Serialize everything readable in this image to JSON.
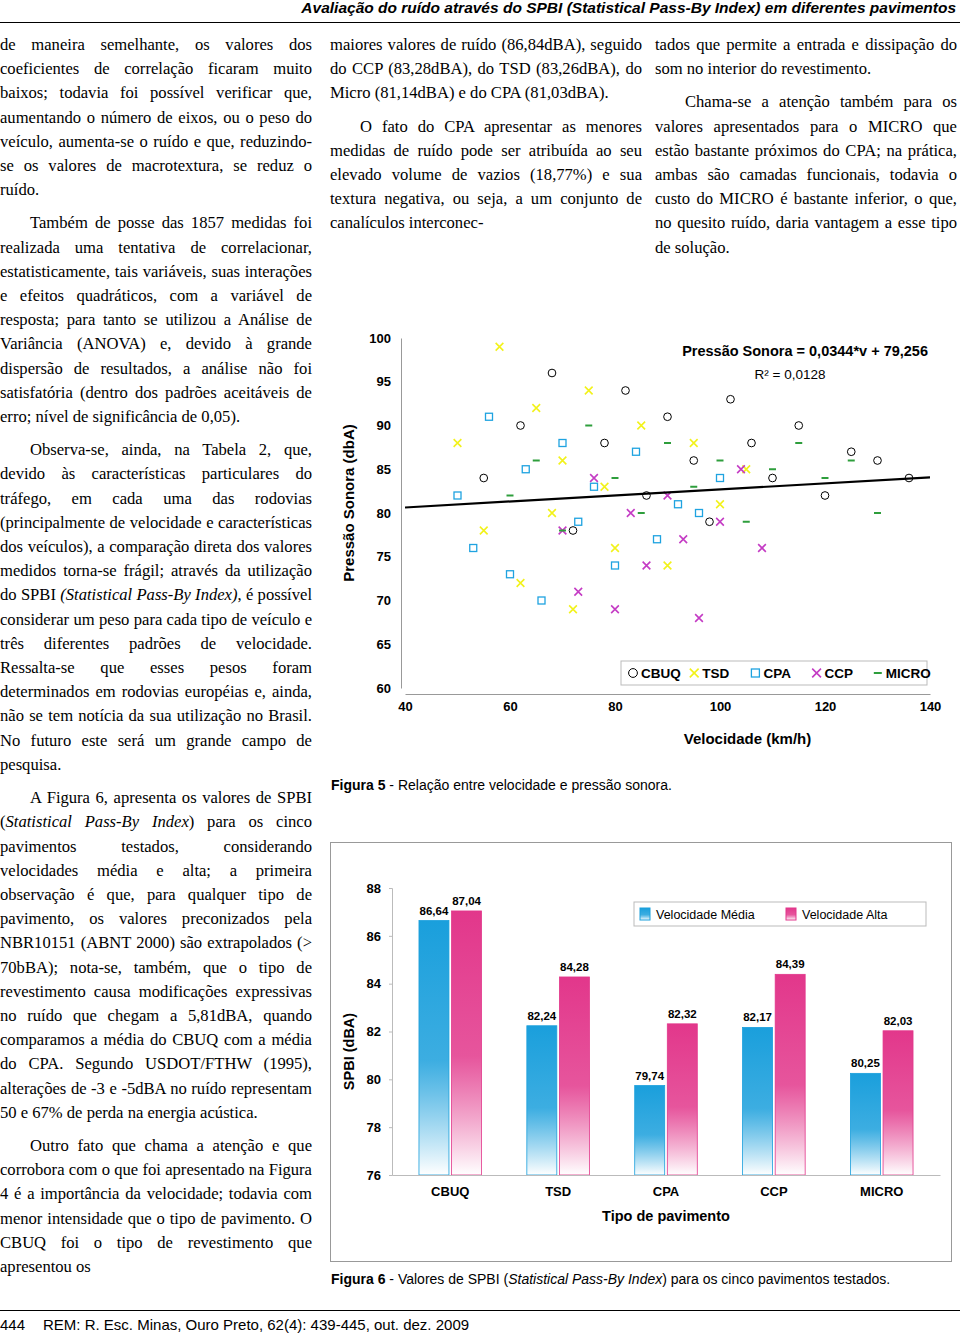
{
  "header": {
    "title": "Avaliação do ruído através do SPBI (Statistical Pass-By Index) em diferentes pavimentos"
  },
  "columns": [
    {
      "paragraphs": [
        {
          "indent": false,
          "runs": [
            {
              "text": "de maneira semelhante, os valores dos coeficientes de correlação ficaram muito baixos; todavia foi possível verificar que, aumentando o número de eixos, ou o peso do veículo, aumenta-se o ruído e que, reduzindo-se os valores de macrotextura, se reduz o ruído."
            }
          ]
        },
        {
          "indent": true,
          "runs": [
            {
              "text": "Também de posse das 1857 medidas foi realizada uma tentativa de correlacionar, estatisticamente, tais variáveis, suas interações e efeitos quadráticos, com a variável de resposta; para tanto se utilizou a Análise de Variância (ANOVA) e, devido à grande dispersão de resultados, a análise não foi satisfatória (dentro dos padrões aceitáveis de erro; nível de significância de 0,05)."
            }
          ]
        },
        {
          "indent": true,
          "runs": [
            {
              "text": "Observa-se, ainda, na Tabela 2, que, devido às características particulares do tráfego, em cada uma das rodovias (principalmente de velocidade e características dos veículos), a comparação direta dos valores medidos torna-se frágil; através da utilização do SPBI "
            },
            {
              "text": "(Statistical Pass-By Index)",
              "italic": true
            },
            {
              "text": ", é possível considerar um peso para cada tipo de veículo e três diferentes padrões de velocidade. Ressalta-se que esses pesos foram determinados em rodovias européias e, ainda, não se tem notícia da sua utilização no Brasil. No futuro este será um grande campo de pesquisa."
            }
          ]
        },
        {
          "indent": true,
          "runs": [
            {
              "text": "A Figura 6, apresenta os valores de SPBI ("
            },
            {
              "text": "Statistical Pass-By Index",
              "italic": true
            },
            {
              "text": ") para os cinco pavimentos testados, considerando velocidades média e alta; a primeira observação é que, para qualquer tipo de pavimento, os valores preconizados pela NBR10151 (ABNT 2000) são extrapolados (> 70bBA); nota-se, também, que o tipo de revestimento causa modificações expressivas no ruído que chegam a 5,81dBA, quando comparamos a média do CBUQ com a média do CPA. Segundo USDOT/FTHW (1995), alterações de -3 e -5dBA no ruído representam 50 e 67% de perda na energia acústica."
            }
          ]
        },
        {
          "indent": true,
          "runs": [
            {
              "text": "Outro fato que chama a atenção e que corrobora com o que foi apresentado na Figura 4 é a importância da velocidade; todavia com menor intensidade que o tipo de pavimento. O CBUQ foi o tipo de revestimento que apresentou os"
            }
          ]
        }
      ]
    },
    {
      "paragraphs": [
        {
          "indent": false,
          "runs": [
            {
              "text": "maiores valores de ruído (86,84dBA), seguido do CCP (83,28dBA), do TSD (83,26dBA), do Micro (81,14dBA) e do CPA (81,03dBA)."
            }
          ]
        },
        {
          "indent": true,
          "runs": [
            {
              "text": "O fato do CPA apresentar as menores medidas de ruído pode ser atribuída ao seu elevado volume de vazios (18,77%) e sua textura negativa, ou seja, a um conjunto de canalículos interconec-"
            }
          ]
        }
      ]
    },
    {
      "paragraphs": [
        {
          "indent": false,
          "runs": [
            {
              "text": "tados que permite a entrada e dissipação do som no interior do revestimento."
            }
          ]
        },
        {
          "indent": true,
          "runs": [
            {
              "text": "Chama-se a atenção também para os valores apresentados para o MICRO que estão bastante próximos do CPA; na prática, ambas são camadas funcionais, todavia o custo do MICRO é bastante inferior, o que, no quesito ruído, daria vantagem a esse tipo de solução."
            }
          ]
        }
      ]
    }
  ],
  "captions": [
    [
      {
        "text": "Figura 5",
        "bold": true
      },
      {
        "text": " - Relação entre velocidade e pressão sonora."
      }
    ],
    [
      {
        "text": "Figura 6",
        "bold": true
      },
      {
        "text": " - Valores de SPBI ("
      },
      {
        "text": "Statistical Pass-By Index",
        "italic": true
      },
      {
        "text": ") para os cinco pavimentos testados."
      }
    ]
  ],
  "footer": {
    "page": "444",
    "journal": "REM: R. Esc. Minas, Ouro Preto, 62(4): 439-445, out. dez. 2009"
  },
  "chart_data": [
    {
      "type": "scatter",
      "xlabel": "Velocidade (km/h)",
      "ylabel": "Pressão Sonora (dbA)",
      "annotations": [
        "Pressão Sonora = 0,0344*v + 79,256",
        "R² = 0,0128"
      ],
      "xlim": [
        40,
        140
      ],
      "xticks": [
        40,
        60,
        80,
        100,
        120,
        140
      ],
      "ylim": [
        60,
        100
      ],
      "yticks": [
        60,
        65,
        70,
        75,
        80,
        85,
        90,
        95,
        100
      ],
      "grid": false,
      "legend": "bottom-right",
      "series": [
        {
          "name": "CBUQ",
          "color": "#000000",
          "marker": "circle",
          "x": [
            55,
            62,
            68,
            72,
            78,
            82,
            86,
            90,
            95,
            98,
            102,
            106,
            110,
            115,
            120,
            125,
            130,
            136
          ],
          "values": [
            84,
            90,
            96,
            78,
            88,
            94,
            82,
            91,
            86,
            79,
            93,
            88,
            84,
            90,
            82,
            87,
            86,
            84
          ]
        },
        {
          "name": "TSD",
          "color": "#f2f21a",
          "marker": "x",
          "x": [
            50,
            55,
            58,
            62,
            65,
            68,
            70,
            72,
            75,
            78,
            80,
            85,
            90,
            95,
            100,
            105
          ],
          "values": [
            88,
            78,
            99,
            72,
            92,
            80,
            86,
            69,
            94,
            83,
            76,
            90,
            74,
            88,
            81,
            85
          ]
        },
        {
          "name": "CPA",
          "color": "#1fa3e0",
          "marker": "square",
          "x": [
            50,
            53,
            56,
            60,
            63,
            66,
            70,
            73,
            76,
            80,
            84,
            88,
            92,
            96,
            100
          ],
          "values": [
            82,
            76,
            91,
            73,
            85,
            70,
            88,
            79,
            83,
            74,
            87,
            77,
            81,
            80,
            84
          ]
        },
        {
          "name": "CCP",
          "color": "#c43bc4",
          "marker": "x",
          "x": [
            70,
            73,
            76,
            80,
            83,
            86,
            90,
            93,
            96,
            100,
            104,
            108
          ],
          "values": [
            78,
            71,
            84,
            69,
            80,
            74,
            82,
            77,
            68,
            79,
            85,
            76
          ]
        },
        {
          "name": "MICRO",
          "color": "#2e9e3c",
          "marker": "dash",
          "x": [
            60,
            65,
            70,
            75,
            80,
            85,
            90,
            95,
            100,
            105,
            110,
            115,
            120,
            125,
            130
          ],
          "values": [
            82,
            86,
            78,
            90,
            84,
            80,
            88,
            83,
            86,
            79,
            85,
            88,
            84,
            86,
            80
          ]
        }
      ],
      "trend_line": {
        "color": "#000000",
        "x": [
          40,
          140
        ],
        "values": [
          80.63,
          84.07
        ]
      }
    },
    {
      "type": "bar",
      "xlabel": "Tipo de pavimento",
      "ylabel": "SPBI (dBA)",
      "categories": [
        "CBUQ",
        "TSD",
        "CPA",
        "CCP",
        "MICRO"
      ],
      "ylim": [
        76,
        88
      ],
      "yticks": [
        76,
        78,
        80,
        82,
        84,
        86,
        88
      ],
      "grid": false,
      "legend": "top-right",
      "data_labels": true,
      "series": [
        {
          "name": "Velocidade Média",
          "color": "#1a9fdc",
          "values": [
            86.64,
            82.24,
            79.74,
            82.17,
            80.25
          ],
          "value_labels": [
            "86,64",
            "82,24",
            "79,74",
            "82,17",
            "80,25"
          ]
        },
        {
          "name": "Velocidade Alta",
          "color": "#e2378b",
          "values": [
            87.04,
            84.28,
            82.32,
            84.39,
            82.03
          ],
          "value_labels": [
            "87,04",
            "84,28",
            "82,32",
            "84,39",
            "82,03"
          ]
        }
      ]
    }
  ]
}
